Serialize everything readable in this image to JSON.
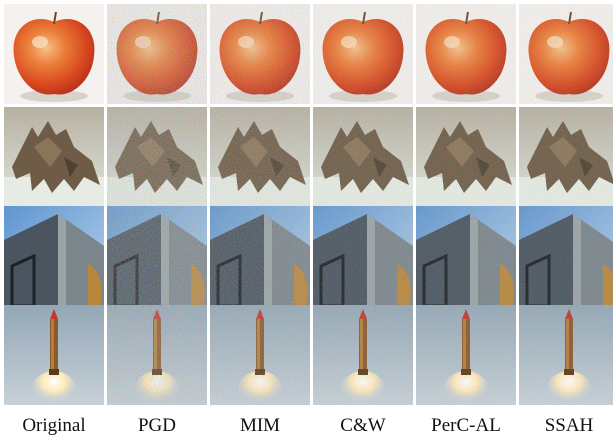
{
  "figure": {
    "methods": [
      {
        "label": "Original",
        "noise": 0
      },
      {
        "label": "PGD",
        "noise": 1
      },
      {
        "label": "MIM",
        "noise": 0.55
      },
      {
        "label": "C&W",
        "noise": 0.3
      },
      {
        "label": "PerC-AL",
        "noise": 0.25
      },
      {
        "label": "SSAH",
        "noise": 0.2
      }
    ],
    "rows": [
      {
        "subject": "apple"
      },
      {
        "subject": "dinosaur"
      },
      {
        "subject": "building"
      },
      {
        "subject": "rocket"
      }
    ]
  }
}
